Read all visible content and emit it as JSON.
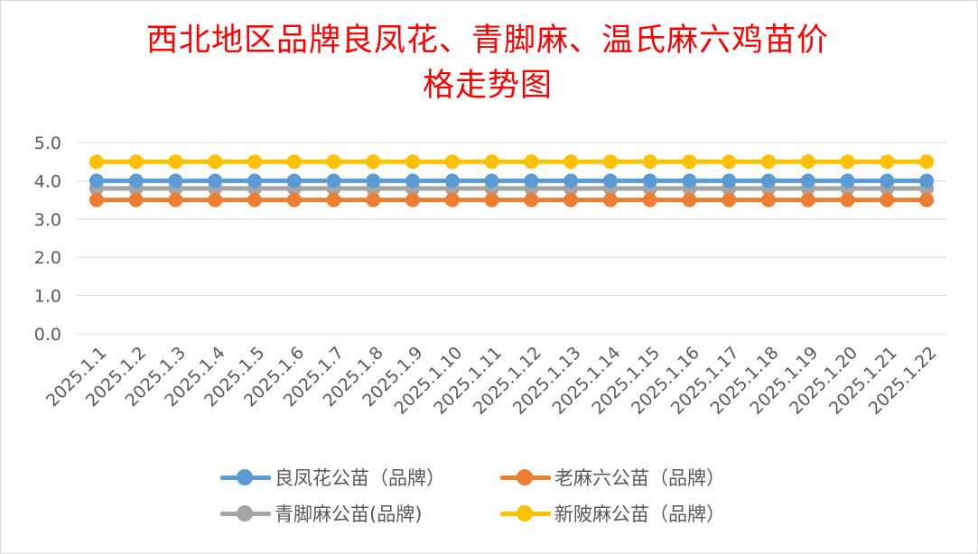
{
  "chart_data": {
    "type": "line",
    "title_line1": "西北地区品牌良凤花、青脚麻、温氏麻六鸡苗价",
    "title_line2": "格走势图",
    "categories": [
      "2025.1.1",
      "2025.1.2",
      "2025.1.3",
      "2025.1.4",
      "2025.1.5",
      "2025.1.6",
      "2025.1.7",
      "2025.1.8",
      "2025.1.9",
      "2025.1.10",
      "2025.1.11",
      "2025.1.12",
      "2025.1.13",
      "2025.1.14",
      "2025.1.15",
      "2025.1.16",
      "2025.1.17",
      "2025.1.18",
      "2025.1.19",
      "2025.1.20",
      "2025.1.21",
      "2025.1.22"
    ],
    "y_ticks": [
      "0.0",
      "1.0",
      "2.0",
      "3.0",
      "4.0",
      "5.0"
    ],
    "ylim": [
      0,
      5
    ],
    "grid": true,
    "legend_position": "bottom",
    "series": [
      {
        "name": "良凤花公苗（品牌）",
        "color": "#5b9bd5",
        "values": [
          4.0,
          4.0,
          4.0,
          4.0,
          4.0,
          4.0,
          4.0,
          4.0,
          4.0,
          4.0,
          4.0,
          4.0,
          4.0,
          4.0,
          4.0,
          4.0,
          4.0,
          4.0,
          4.0,
          4.0,
          4.0,
          4.0
        ]
      },
      {
        "name": "老麻六公苗（品牌）",
        "color": "#ed7d31",
        "values": [
          3.5,
          3.5,
          3.5,
          3.5,
          3.5,
          3.5,
          3.5,
          3.5,
          3.5,
          3.5,
          3.5,
          3.5,
          3.5,
          3.5,
          3.5,
          3.5,
          3.5,
          3.5,
          3.5,
          3.5,
          3.5,
          3.5
        ]
      },
      {
        "name": "青脚麻公苗(品牌)",
        "color": "#a5a5a5",
        "values": [
          3.8,
          3.8,
          3.8,
          3.8,
          3.8,
          3.8,
          3.8,
          3.8,
          3.8,
          3.8,
          3.8,
          3.8,
          3.8,
          3.8,
          3.8,
          3.8,
          3.8,
          3.8,
          3.8,
          3.8,
          3.8,
          3.8
        ]
      },
      {
        "name": "新陂麻公苗（品牌）",
        "color": "#ffc000",
        "values": [
          4.5,
          4.5,
          4.5,
          4.5,
          4.5,
          4.5,
          4.5,
          4.5,
          4.5,
          4.5,
          4.5,
          4.5,
          4.5,
          4.5,
          4.5,
          4.5,
          4.5,
          4.5,
          4.5,
          4.5,
          4.5,
          4.5
        ]
      }
    ]
  }
}
